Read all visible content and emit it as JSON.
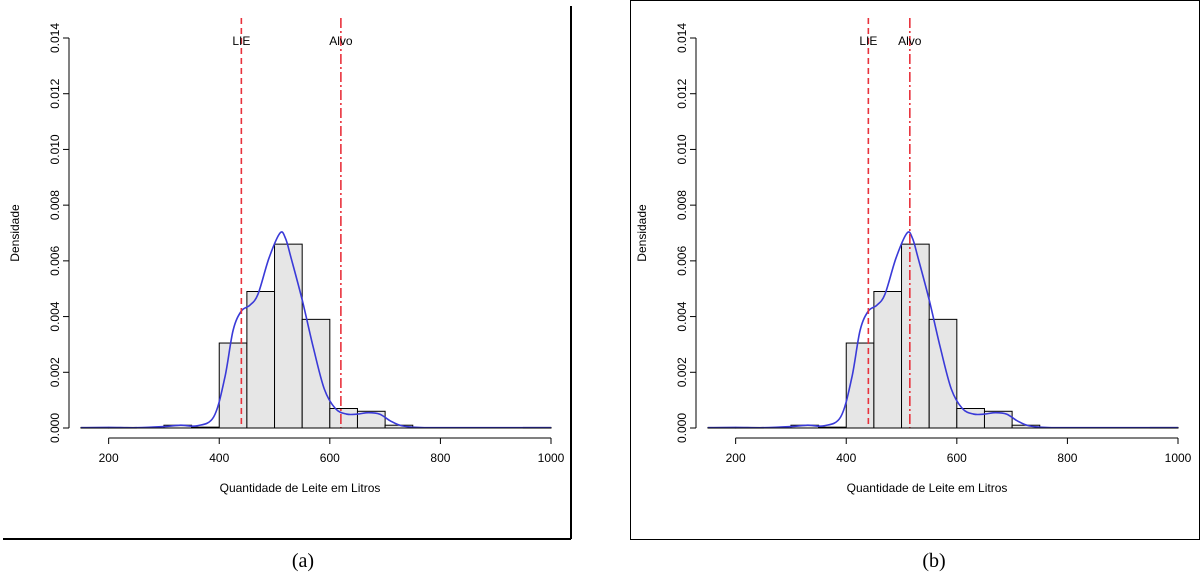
{
  "chart_data": [
    {
      "type": "histogram",
      "panel_caption": "(a)",
      "xlabel": "Quantidade de Leite em Litros",
      "ylabel": "Densidade",
      "xlim": [
        150,
        1000
      ],
      "ylim": [
        0,
        0.014
      ],
      "x_ticks": [
        200,
        400,
        600,
        800,
        1000
      ],
      "x_tick_labels": [
        "200",
        "400",
        "600",
        "800",
        "1000"
      ],
      "y_ticks": [
        0,
        0.002,
        0.004,
        0.006,
        0.008,
        0.01,
        0.012,
        0.014
      ],
      "y_tick_labels": [
        "0.000",
        "0.002",
        "0.004",
        "0.006",
        "0.008",
        "0.010",
        "0.012",
        "0.014"
      ],
      "bins": [
        {
          "x0": 150,
          "x1": 200,
          "density": 2e-05
        },
        {
          "x0": 200,
          "x1": 250,
          "density": 2e-05
        },
        {
          "x0": 300,
          "x1": 350,
          "density": 0.0001
        },
        {
          "x0": 350,
          "x1": 400,
          "density": 3e-05
        },
        {
          "x0": 400,
          "x1": 450,
          "density": 0.00305
        },
        {
          "x0": 450,
          "x1": 500,
          "density": 0.0049
        },
        {
          "x0": 500,
          "x1": 550,
          "density": 0.0066
        },
        {
          "x0": 550,
          "x1": 600,
          "density": 0.0039
        },
        {
          "x0": 600,
          "x1": 650,
          "density": 0.0007
        },
        {
          "x0": 650,
          "x1": 700,
          "density": 0.0006
        },
        {
          "x0": 700,
          "x1": 750,
          "density": 0.0001
        },
        {
          "x0": 950,
          "x1": 1000,
          "density": 2e-05
        }
      ],
      "density_curve": {
        "color": "#3a3ad8",
        "x": [
          150,
          200,
          250,
          300,
          330,
          360,
          390,
          410,
          425,
          440,
          455,
          470,
          490,
          510,
          520,
          530,
          550,
          570,
          590,
          610,
          630,
          650,
          670,
          690,
          710,
          730,
          760,
          800,
          900,
          1000
        ],
        "y": [
          1e-05,
          2e-05,
          1e-05,
          5e-05,
          0.0001,
          8e-05,
          0.0004,
          0.0018,
          0.0035,
          0.0042,
          0.0044,
          0.0048,
          0.0061,
          0.007,
          0.0068,
          0.0061,
          0.0046,
          0.0029,
          0.0014,
          0.0007,
          0.0005,
          0.0005,
          0.00055,
          0.0005,
          0.00025,
          8e-05,
          2e-05,
          1e-05,
          1e-05,
          1e-05
        ]
      },
      "reference_lines": [
        {
          "label": "LIE",
          "x": 440,
          "color": "#e8323c",
          "style": "dashed"
        },
        {
          "label": "Alvo",
          "x": 620,
          "color": "#e8323c",
          "style": "dashdot"
        }
      ],
      "bar_fill": "#e6e6e6",
      "bar_stroke": "#000000"
    },
    {
      "type": "histogram",
      "panel_caption": "(b)",
      "xlabel": "Quantidade de Leite em Litros",
      "ylabel": "Densidade",
      "xlim": [
        150,
        1000
      ],
      "ylim": [
        0,
        0.014
      ],
      "x_ticks": [
        200,
        400,
        600,
        800,
        1000
      ],
      "x_tick_labels": [
        "200",
        "400",
        "600",
        "800",
        "1000"
      ],
      "y_ticks": [
        0,
        0.002,
        0.004,
        0.006,
        0.008,
        0.01,
        0.012,
        0.014
      ],
      "y_tick_labels": [
        "0.000",
        "0.002",
        "0.004",
        "0.006",
        "0.008",
        "0.010",
        "0.012",
        "0.014"
      ],
      "bins": [
        {
          "x0": 150,
          "x1": 200,
          "density": 2e-05
        },
        {
          "x0": 200,
          "x1": 250,
          "density": 2e-05
        },
        {
          "x0": 300,
          "x1": 350,
          "density": 0.0001
        },
        {
          "x0": 350,
          "x1": 400,
          "density": 3e-05
        },
        {
          "x0": 400,
          "x1": 450,
          "density": 0.00305
        },
        {
          "x0": 450,
          "x1": 500,
          "density": 0.0049
        },
        {
          "x0": 500,
          "x1": 550,
          "density": 0.0066
        },
        {
          "x0": 550,
          "x1": 600,
          "density": 0.0039
        },
        {
          "x0": 600,
          "x1": 650,
          "density": 0.0007
        },
        {
          "x0": 650,
          "x1": 700,
          "density": 0.0006
        },
        {
          "x0": 700,
          "x1": 750,
          "density": 0.0001
        },
        {
          "x0": 950,
          "x1": 1000,
          "density": 2e-05
        }
      ],
      "density_curve": {
        "color": "#3a3ad8",
        "x": [
          150,
          200,
          250,
          300,
          330,
          360,
          390,
          410,
          425,
          440,
          455,
          470,
          490,
          510,
          520,
          530,
          550,
          570,
          590,
          610,
          630,
          650,
          670,
          690,
          710,
          730,
          760,
          800,
          900,
          1000
        ],
        "y": [
          1e-05,
          2e-05,
          1e-05,
          5e-05,
          0.0001,
          8e-05,
          0.0004,
          0.0018,
          0.0035,
          0.0042,
          0.0044,
          0.0048,
          0.0061,
          0.007,
          0.0068,
          0.0061,
          0.0046,
          0.0029,
          0.0014,
          0.0007,
          0.0005,
          0.0005,
          0.00055,
          0.0005,
          0.00025,
          8e-05,
          2e-05,
          1e-05,
          1e-05,
          1e-05
        ]
      },
      "reference_lines": [
        {
          "label": "LIE",
          "x": 440,
          "color": "#e8323c",
          "style": "dashed"
        },
        {
          "label": "Alvo",
          "x": 515,
          "color": "#e8323c",
          "style": "dashdot"
        }
      ],
      "bar_fill": "#e6e6e6",
      "bar_stroke": "#000000"
    }
  ]
}
